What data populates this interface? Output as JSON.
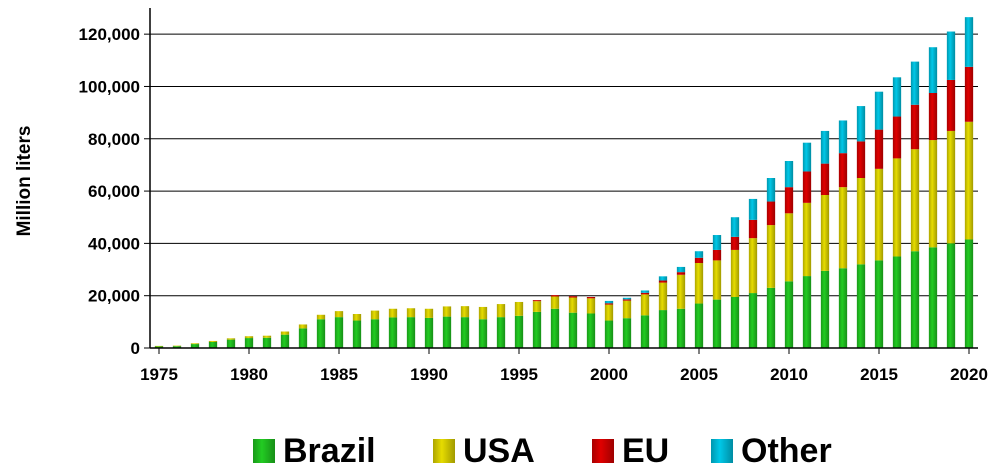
{
  "chart_data": {
    "type": "bar",
    "stacked": true,
    "ylabel": "Million liters",
    "xlabel": "",
    "ylim": [
      0,
      130000
    ],
    "y_ticks": [
      0,
      20000,
      40000,
      60000,
      80000,
      100000,
      120000
    ],
    "y_tick_labels": [
      "0",
      "20,000",
      "40,000",
      "60,000",
      "80,000",
      "100,000",
      "120,000"
    ],
    "x_tick_labels": [
      "1975",
      "1980",
      "1985",
      "1990",
      "1995",
      "2000",
      "2005",
      "2010",
      "2015",
      "2020"
    ],
    "grid": "horizontal",
    "legend_position": "bottom",
    "categories": [
      1975,
      1976,
      1977,
      1978,
      1979,
      1980,
      1981,
      1982,
      1983,
      1984,
      1985,
      1986,
      1987,
      1988,
      1989,
      1990,
      1991,
      1992,
      1993,
      1994,
      1995,
      1996,
      1997,
      1998,
      1999,
      2000,
      2001,
      2002,
      2003,
      2004,
      2005,
      2006,
      2007,
      2008,
      2009,
      2010,
      2011,
      2012,
      2013,
      2014,
      2015,
      2016,
      2017,
      2018,
      2019,
      2020
    ],
    "series": [
      {
        "name": "Brazil",
        "color": "#22cc22",
        "values": [
          600,
          700,
          1500,
          2300,
          3200,
          3800,
          3900,
          5100,
          7500,
          11000,
          11800,
          10500,
          11000,
          11700,
          11800,
          11500,
          12000,
          11800,
          11000,
          11800,
          12300,
          13800,
          15000,
          13500,
          13200,
          10500,
          11400,
          12500,
          14500,
          15000,
          17000,
          18500,
          19500,
          21000,
          23000,
          25500,
          27500,
          29500,
          30500,
          32000,
          33500,
          35000,
          37000,
          38500,
          40000,
          41500
        ]
      },
      {
        "name": "USA",
        "color": "#e6dc00",
        "values": [
          200,
          200,
          300,
          400,
          500,
          700,
          800,
          1200,
          1500,
          1700,
          2300,
          2500,
          3300,
          3300,
          3400,
          3500,
          3900,
          4200,
          4700,
          5000,
          5300,
          4100,
          4700,
          5800,
          5800,
          6100,
          6700,
          8000,
          10500,
          13000,
          15500,
          15000,
          18000,
          21000,
          24000,
          26000,
          28000,
          29000,
          31000,
          33000,
          35000,
          37500,
          39000,
          41000,
          43000,
          45000
        ]
      },
      {
        "name": "EU",
        "color": "#e00000",
        "values": [
          0,
          0,
          0,
          0,
          0,
          0,
          0,
          0,
          0,
          0,
          0,
          0,
          0,
          0,
          0,
          0,
          0,
          0,
          0,
          0,
          0,
          400,
          500,
          500,
          500,
          500,
          500,
          600,
          800,
          1000,
          2000,
          4000,
          5000,
          7000,
          9000,
          10000,
          12000,
          12000,
          13000,
          14000,
          15000,
          16000,
          17000,
          18000,
          19500,
          21000
        ]
      },
      {
        "name": "Other",
        "color": "#00c8e8",
        "values": [
          0,
          0,
          0,
          0,
          0,
          0,
          0,
          0,
          0,
          0,
          0,
          0,
          0,
          0,
          0,
          0,
          0,
          0,
          0,
          0,
          0,
          0,
          0,
          0,
          0,
          900,
          600,
          900,
          1600,
          2000,
          2500,
          5700,
          7500,
          8000,
          9000,
          10000,
          11000,
          12500,
          12500,
          13500,
          14500,
          15000,
          16500,
          17500,
          18500,
          19000
        ]
      }
    ]
  }
}
